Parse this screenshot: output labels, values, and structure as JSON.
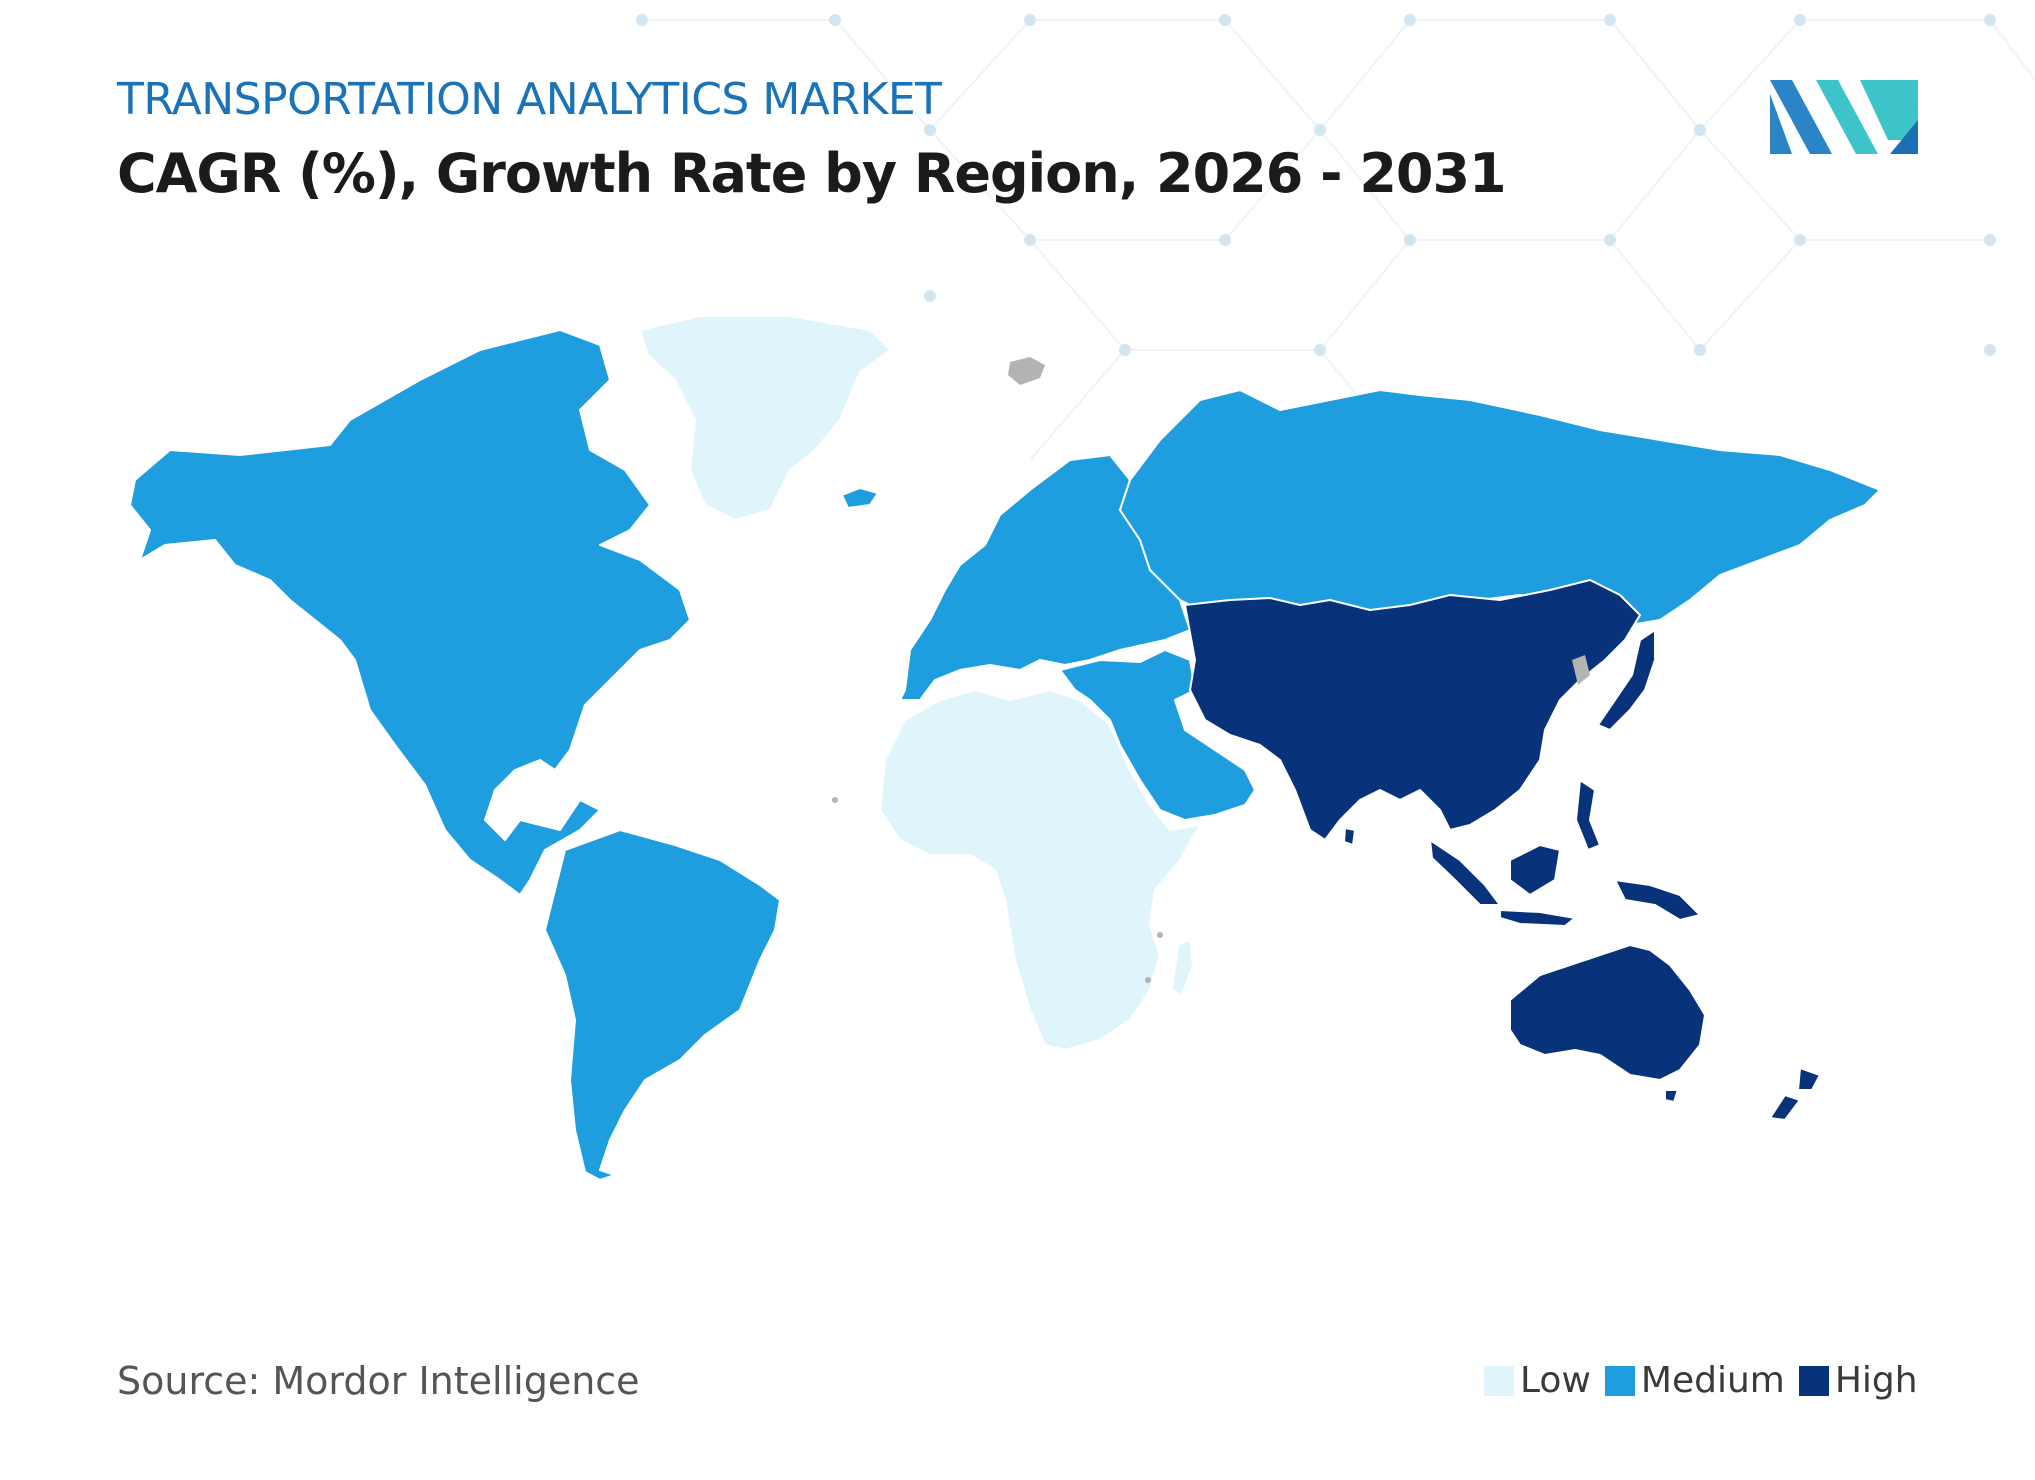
{
  "header": {
    "kicker": "TRANSPORTATION ANALYTICS MARKET",
    "title": "CAGR (%), Growth Rate by Region, 2026 - 2031"
  },
  "map": {
    "type": "choropleth",
    "scale": [
      "Low",
      "Medium",
      "High"
    ],
    "regions": [
      {
        "name": "North America",
        "level": "Medium"
      },
      {
        "name": "South America",
        "level": "Medium"
      },
      {
        "name": "Europe",
        "level": "Medium"
      },
      {
        "name": "Middle East",
        "level": "Medium"
      },
      {
        "name": "Greenland",
        "level": "Low"
      },
      {
        "name": "Africa",
        "level": "Low"
      },
      {
        "name": "Asia Pacific",
        "level": "High"
      },
      {
        "name": "Australia",
        "level": "High"
      },
      {
        "name": "New Zealand",
        "level": "High"
      }
    ]
  },
  "legend": {
    "items": [
      {
        "label": "Low",
        "color": "#dff5fb"
      },
      {
        "label": "Medium",
        "color": "#1e9ede"
      },
      {
        "label": "High",
        "color": "#08337a"
      }
    ]
  },
  "colors": {
    "no_data": "#b3b3b3",
    "kicker": "#1a73b8",
    "border": "#ffffff"
  },
  "footer": {
    "source": "Source: Mordor Intelligence"
  },
  "logo": {
    "icon": "mordor-intelligence-logo"
  }
}
